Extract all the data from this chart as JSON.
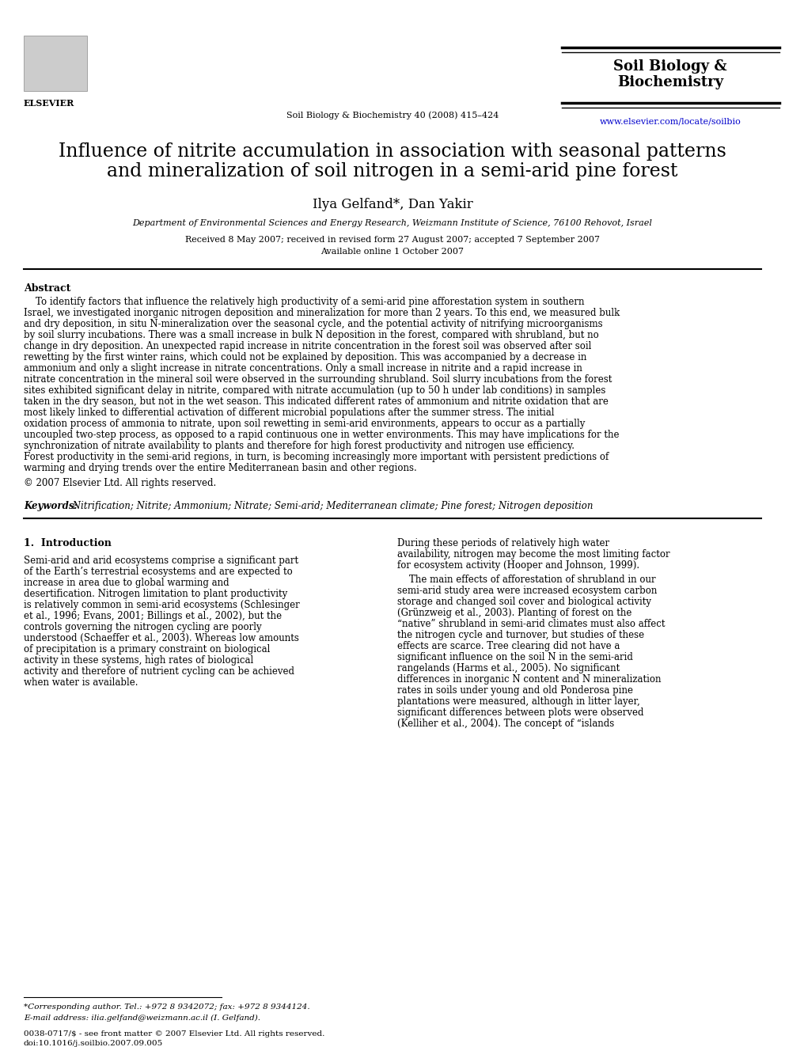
{
  "bg_color": "#ffffff",
  "journal_name_line1": "Soil Biology &",
  "journal_name_line2": "Biochemistry",
  "journal_citation": "Soil Biology & Biochemistry 40 (2008) 415–424",
  "journal_url": "www.elsevier.com/locate/soilbio",
  "elsevier_label": "ELSEVIER",
  "title_line1": "Influence of nitrite accumulation in association with seasonal patterns",
  "title_line2": "and mineralization of soil nitrogen in a semi-arid pine forest",
  "authors": "Ilya Gelfand*, Dan Yakir",
  "affiliation": "Department of Environmental Sciences and Energy Research, Weizmann Institute of Science, 76100 Rehovot, Israel",
  "received": "Received 8 May 2007; received in revised form 27 August 2007; accepted 7 September 2007",
  "available": "Available online 1 October 2007",
  "abstract_label": "Abstract",
  "abstract_text": "To identify factors that influence the relatively high productivity of a semi-arid pine afforestation system in southern Israel, we investigated inorganic nitrogen deposition and mineralization for more than 2 years. To this end, we measured bulk and dry deposition, in situ N-mineralization over the seasonal cycle, and the potential activity of nitrifying microorganisms by soil slurry incubations. There was a small increase in bulk N deposition in the forest, compared with shrubland, but no change in dry deposition. An unexpected rapid increase in nitrite concentration in the forest soil was observed after soil rewetting by the first winter rains, which could not be explained by deposition. This was accompanied by a decrease in ammonium and only a slight increase in nitrate concentrations. Only a small increase in nitrite and a rapid increase in nitrate concentration in the mineral soil were observed in the surrounding shrubland. Soil slurry incubations from the forest sites exhibited significant delay in nitrite, compared with nitrate accumulation (up to 50 h under lab conditions) in samples taken in the dry season, but not in the wet season. This indicated different rates of ammonium and nitrite oxidation that are most likely linked to differential activation of different microbial populations after the summer stress. The initial oxidation process of ammonia to nitrate, upon soil rewetting in semi-arid environments, appears to occur as a partially uncoupled two-step process, as opposed to a rapid continuous one in wetter environments. This may have implications for the synchronization of nitrate availability to plants and therefore for high forest productivity and nitrogen use efficiency. Forest productivity in the semi-arid regions, in turn, is becoming increasingly more important with persistent predictions of warming and drying trends over the entire Mediterranean basin and other regions.",
  "copyright_text": "© 2007 Elsevier Ltd. All rights reserved.",
  "keywords_label": "Keywords:",
  "keywords_text": " Nitrification; Nitrite; Ammonium; Nitrate; Semi-arid; Mediterranean climate; Pine forest; Nitrogen deposition",
  "section1_label": "1.  Introduction",
  "intro_left": "Semi-arid and arid ecosystems comprise a significant part of the Earth’s terrestrial ecosystems and are expected to increase in area due to global warming and desertification. Nitrogen limitation to plant productivity is relatively common in semi-arid ecosystems (Schlesinger et al., 1996; Evans, 2001; Billings et al., 2002), but the controls governing the nitrogen cycling are poorly understood (Schaeffer et al., 2003). Whereas low amounts of precipitation is a primary constraint on biological activity in these systems, high rates of biological activity and therefore of nutrient cycling can be achieved when water is available.",
  "intro_right": "During these periods of relatively high water availability, nitrogen may become the most limiting factor for ecosystem activity (Hooper and Johnson, 1999).\n    The main effects of afforestation of shrubland in our semi-arid study area were increased ecosystem carbon storage and changed soil cover and biological activity (Grünzweig et al., 2003). Planting of forest on the “native” shrubland in semi-arid climates must also affect the nitrogen cycle and turnover, but studies of these effects are scarce. Tree clearing did not have a significant influence on the soil N in the semi-arid rangelands (Harms et al., 2005). No significant differences in inorganic N content and N mineralization rates in soils under young and old Ponderosa pine plantations were measured, although in litter layer, significant differences between plots were observed (Kelliher et al., 2004). The concept of “islands",
  "footnote_star": "*Corresponding author. Tel.: +972 8 9342072; fax: +972 8 9344124.",
  "footnote_email": "E-mail address: ilia.gelfand@weizmann.ac.il (I. Gelfand).",
  "footer_issn": "0038-0717/$ - see front matter © 2007 Elsevier Ltd. All rights reserved.",
  "footer_doi": "doi:10.1016/j.soilbio.2007.09.005"
}
